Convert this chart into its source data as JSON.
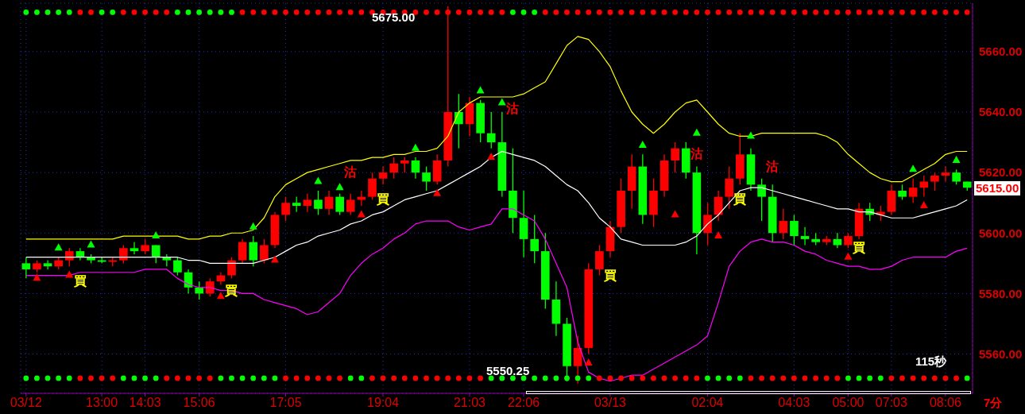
{
  "chart_data": {
    "type": "candlestick",
    "categories": [
      "03/12",
      null,
      null,
      null,
      null,
      null,
      null,
      "13:00",
      null,
      null,
      null,
      "14:03",
      null,
      null,
      null,
      null,
      "15:06",
      null,
      null,
      null,
      null,
      null,
      null,
      null,
      "17:05",
      null,
      null,
      null,
      null,
      null,
      null,
      null,
      null,
      "19:04",
      null,
      null,
      null,
      null,
      null,
      null,
      null,
      "21:03",
      null,
      null,
      null,
      null,
      "22:06",
      null,
      null,
      null,
      null,
      null,
      null,
      null,
      "03/13",
      null,
      null,
      null,
      null,
      null,
      null,
      null,
      null,
      "02:04",
      null,
      null,
      null,
      null,
      null,
      null,
      null,
      "04:03",
      null,
      null,
      null,
      null,
      "05:00",
      null,
      null,
      null,
      "07:03",
      null,
      null,
      null,
      null,
      "08:06",
      null,
      null
    ],
    "ohlc": [
      [
        5590,
        5592,
        5585,
        5588
      ],
      [
        5588,
        5591,
        5587,
        5590
      ],
      [
        5590,
        5591,
        5588,
        5589
      ],
      [
        5589,
        5592,
        5588,
        5591
      ],
      [
        5591,
        5595,
        5589,
        5594
      ],
      [
        5594,
        5595,
        5591,
        5592
      ],
      [
        5592,
        5593,
        5590,
        5591
      ],
      [
        5591,
        5592,
        5590,
        5590.5
      ],
      [
        5590.5,
        5592,
        5589,
        5591
      ],
      [
        5591,
        5596,
        5590,
        5595
      ],
      [
        5595,
        5597,
        5593,
        5594
      ],
      [
        5594,
        5598,
        5593,
        5596
      ],
      [
        5596,
        5596,
        5590,
        5592
      ],
      [
        5592,
        5593,
        5589,
        5591
      ],
      [
        5591,
        5592,
        5586,
        5587
      ],
      [
        5587,
        5588,
        5580,
        5582
      ],
      [
        5582,
        5584,
        5578,
        5580
      ],
      [
        5580,
        5585,
        5579,
        5584
      ],
      [
        5584,
        5587,
        5583,
        5586
      ],
      [
        5586,
        5592,
        5585,
        5591
      ],
      [
        5591,
        5598,
        5590,
        5597
      ],
      [
        5597,
        5599,
        5589,
        5591
      ],
      [
        5591,
        5598,
        5590,
        5596
      ],
      [
        5596,
        5607,
        5595,
        5606
      ],
      [
        5606,
        5612,
        5604,
        5610
      ],
      [
        5610,
        5612,
        5607,
        5609
      ],
      [
        5609,
        5613,
        5607,
        5611
      ],
      [
        5611,
        5614,
        5606,
        5608
      ],
      [
        5608,
        5614,
        5606,
        5612
      ],
      [
        5612,
        5613,
        5606,
        5607
      ],
      [
        5607,
        5613,
        5606,
        5611
      ],
      [
        5611,
        5614,
        5609,
        5612
      ],
      [
        5612,
        5620,
        5611,
        5618
      ],
      [
        5618,
        5622,
        5616,
        5620
      ],
      [
        5620,
        5625,
        5618,
        5623
      ],
      [
        5623,
        5625,
        5620,
        5624
      ],
      [
        5624,
        5625,
        5618,
        5620
      ],
      [
        5620,
        5622,
        5614,
        5617
      ],
      [
        5617,
        5626,
        5616,
        5624
      ],
      [
        5624,
        5675,
        5622,
        5640
      ],
      [
        5640,
        5646,
        5628,
        5636
      ],
      [
        5636,
        5645,
        5632,
        5643
      ],
      [
        5643,
        5644,
        5630,
        5633
      ],
      [
        5633,
        5640,
        5628,
        5630
      ],
      [
        5630,
        5640,
        5612,
        5614
      ],
      [
        5614,
        5628,
        5600,
        5605
      ],
      [
        5605,
        5614,
        5592,
        5598
      ],
      [
        5598,
        5606,
        5590,
        5594
      ],
      [
        5594,
        5600,
        5575,
        5578
      ],
      [
        5578,
        5584,
        5566,
        5570
      ],
      [
        5570,
        5572,
        5551,
        5556
      ],
      [
        5556,
        5566,
        5550.25,
        5562
      ],
      [
        5562,
        5590,
        5560,
        5588
      ],
      [
        5588,
        5596,
        5586,
        5594
      ],
      [
        5594,
        5604,
        5592,
        5602
      ],
      [
        5602,
        5618,
        5600,
        5614
      ],
      [
        5614,
        5626,
        5608,
        5622
      ],
      [
        5622,
        5626,
        5603,
        5606
      ],
      [
        5606,
        5618,
        5602,
        5614
      ],
      [
        5614,
        5626,
        5612,
        5624
      ],
      [
        5624,
        5630,
        5620,
        5628
      ],
      [
        5628,
        5630,
        5618,
        5620
      ],
      [
        5620,
        5622,
        5593,
        5600
      ],
      [
        5600,
        5610,
        5596,
        5606
      ],
      [
        5606,
        5614,
        5604,
        5612
      ],
      [
        5612,
        5622,
        5608,
        5618
      ],
      [
        5618,
        5633,
        5616,
        5626
      ],
      [
        5626,
        5628,
        5614,
        5616
      ],
      [
        5616,
        5618,
        5604,
        5612
      ],
      [
        5612,
        5616,
        5597,
        5600
      ],
      [
        5600,
        5608,
        5598,
        5604
      ],
      [
        5604,
        5606,
        5596,
        5599
      ],
      [
        5599,
        5602,
        5596,
        5598
      ],
      [
        5598,
        5600,
        5596,
        5597
      ],
      [
        5597,
        5599,
        5596,
        5598
      ],
      [
        5598,
        5600,
        5595,
        5596
      ],
      [
        5596,
        5600,
        5595,
        5599
      ],
      [
        5599,
        5610,
        5598,
        5608
      ],
      [
        5608,
        5610,
        5604,
        5606
      ],
      [
        5606,
        5609,
        5604,
        5607
      ],
      [
        5607,
        5616,
        5606,
        5614
      ],
      [
        5614,
        5616,
        5611,
        5612
      ],
      [
        5612,
        5618,
        5610,
        5615
      ],
      [
        5615,
        5619,
        5612,
        5617
      ],
      [
        5617,
        5620,
        5614,
        5619
      ],
      [
        5619,
        5622,
        5617,
        5620
      ],
      [
        5620,
        5621,
        5616,
        5617
      ],
      [
        5617,
        5617,
        5614,
        5615
      ]
    ],
    "colors": [
      "#00ff00",
      "#ff0000",
      "#00ff00",
      "#ff0000",
      "#ff0000",
      "#00ff00",
      "#00ff00",
      "#00ff00",
      "#ff0000",
      "#ff0000",
      "#00ff00",
      "#ff0000",
      "#00ff00",
      "#00ff00",
      "#00ff00",
      "#00ff00",
      "#00ff00",
      "#ff0000",
      "#ff0000",
      "#ff0000",
      "#ff0000",
      "#00ff00",
      "#ff0000",
      "#ff0000",
      "#ff0000",
      "#00ff00",
      "#ff0000",
      "#00ff00",
      "#ff0000",
      "#00ff00",
      "#ff0000",
      "#ff0000",
      "#ff0000",
      "#ff0000",
      "#ff0000",
      "#ff0000",
      "#00ff00",
      "#00ff00",
      "#ff0000",
      "#ff0000",
      "#00ff00",
      "#ff0000",
      "#00ff00",
      "#00ff00",
      "#00ff00",
      "#00ff00",
      "#00ff00",
      "#00ff00",
      "#00ff00",
      "#00ff00",
      "#00ff00",
      "#ff0000",
      "#ff0000",
      "#ff0000",
      "#ff0000",
      "#ff0000",
      "#ff0000",
      "#00ff00",
      "#ff0000",
      "#ff0000",
      "#ff0000",
      "#00ff00",
      "#00ff00",
      "#ff0000",
      "#ff0000",
      "#ff0000",
      "#ff0000",
      "#00ff00",
      "#00ff00",
      "#00ff00",
      "#ff0000",
      "#00ff00",
      "#00ff00",
      "#00ff00",
      "#ff0000",
      "#00ff00",
      "#ff0000",
      "#ff0000",
      "#00ff00",
      "#ff0000",
      "#ff0000",
      "#00ff00",
      "#ff0000",
      "#ff0000",
      "#ff0000",
      "#ff0000",
      "#00ff00",
      "#00ff00"
    ],
    "series": [
      {
        "type": "line",
        "color": "#ffff00",
        "values": [
          5598,
          5598,
          5598,
          5598,
          5598,
          5598,
          5598,
          5598,
          5598,
          5599,
          5599,
          5599,
          5599,
          5599,
          5599,
          5598,
          5598,
          5599,
          5599,
          5600,
          5600,
          5601,
          5605,
          5612,
          5616,
          5618,
          5620,
          5621,
          5622,
          5623,
          5624,
          5624,
          5625,
          5625,
          5626,
          5626,
          5627,
          5627,
          5628,
          5632,
          5640,
          5643,
          5645,
          5645,
          5645,
          5645,
          5646,
          5648,
          5650,
          5656,
          5662,
          5665,
          5664,
          5660,
          5655,
          5647,
          5640,
          5636,
          5633,
          5636,
          5640,
          5643,
          5644,
          5640,
          5636,
          5633,
          5632,
          5632,
          5633,
          5633,
          5633,
          5633,
          5633,
          5633,
          5632,
          5630,
          5626,
          5623,
          5620,
          5618,
          5617,
          5617,
          5619,
          5621,
          5623,
          5626,
          5627,
          5627
        ]
      },
      {
        "type": "line",
        "color": "#ffffff",
        "values": [
          5592,
          5592,
          5592,
          5592,
          5592,
          5592,
          5592,
          5592,
          5592,
          5592,
          5592,
          5592,
          5592,
          5592,
          5592,
          5591,
          5591,
          5590,
          5590,
          5590,
          5590,
          5590,
          5591,
          5592,
          5594,
          5596,
          5597,
          5599,
          5600,
          5601,
          5603,
          5604,
          5606,
          5607,
          5609,
          5611,
          5612,
          5613,
          5614,
          5616,
          5618,
          5620,
          5622,
          5625,
          5627,
          5626,
          5625,
          5624,
          5622,
          5619,
          5616,
          5614,
          5610,
          5605,
          5602,
          5598,
          5597,
          5596,
          5596,
          5596,
          5596,
          5597,
          5599,
          5603,
          5606,
          5610,
          5614,
          5615,
          5615,
          5614,
          5613,
          5612,
          5611,
          5610,
          5609,
          5608,
          5608,
          5607,
          5607,
          5606,
          5605,
          5605,
          5605,
          5606,
          5607,
          5608,
          5609,
          5611
        ]
      },
      {
        "type": "line",
        "color": "#ff00ff",
        "values": [
          5586,
          5586,
          5586,
          5586,
          5586,
          5587,
          5587,
          5587,
          5587,
          5587,
          5587,
          5588,
          5588,
          5588,
          5585,
          5583,
          5582,
          5582,
          5581,
          5581,
          5580,
          5580,
          5578,
          5577,
          5576,
          5575,
          5573,
          5574,
          5577,
          5580,
          5586,
          5590,
          5593,
          5595,
          5598,
          5600,
          5603,
          5604,
          5604,
          5604,
          5602,
          5601,
          5602,
          5603,
          5608,
          5608,
          5606,
          5604,
          5598,
          5590,
          5582,
          5564,
          5554,
          5552,
          5551,
          5552,
          5553,
          5553,
          5555,
          5557,
          5559,
          5561,
          5563,
          5566,
          5577,
          5589,
          5594,
          5597,
          5598,
          5597,
          5597,
          5596,
          5594,
          5593,
          5591,
          5590,
          5589,
          5589,
          5588,
          5588,
          5589,
          5591,
          5592,
          5592,
          5592,
          5592,
          5594,
          5595
        ]
      },
      {
        "type": "scatter",
        "marker": "circle",
        "values": [
          5673,
          5673,
          5673,
          5673,
          5673,
          5673,
          5673,
          5673,
          5673,
          5673,
          5673,
          5673,
          5673,
          5673,
          5673,
          5673,
          5673,
          5673,
          5673,
          5673,
          5673,
          5673,
          5673,
          5673,
          5673,
          5673,
          5673,
          5673,
          5673,
          5673,
          5673,
          5673,
          5673,
          5673,
          5673,
          5673,
          5673,
          5673,
          5673,
          5673,
          5673,
          5673,
          5673,
          5673,
          5673,
          5673,
          5673,
          5673,
          5673,
          5673,
          5673,
          5673,
          5673,
          5673,
          5673,
          5673,
          5673,
          5673,
          5673,
          5673,
          5673,
          5673,
          5673,
          5673,
          5673,
          5673,
          5673,
          5673,
          5673,
          5673,
          5673,
          5673,
          5673,
          5673,
          5673,
          5673,
          5673,
          5673,
          5673,
          5673,
          5673,
          5673,
          5673,
          5673,
          5673,
          5673,
          5673,
          5673
        ],
        "colors": [
          "#00ff00",
          "#00ff00",
          "#00ff00",
          "#00ff00",
          "#00ff00",
          "#ff0000",
          "#ff0000",
          "#00ff00",
          "#00ff00",
          "#ff0000",
          "#ff0000",
          "#ff0000",
          "#ff0000",
          "#ff0000",
          "#00ff00",
          "#00ff00",
          "#00ff00",
          "#00ff00",
          "#00ff00",
          "#00ff00",
          "#ff0000",
          "#ff0000",
          "#ff0000",
          "#ff0000",
          "#ff0000",
          "#ff0000",
          "#ff0000",
          "#ff0000",
          "#ff0000",
          "#ff0000",
          "#ff0000",
          "#ff0000",
          "#ff0000",
          "#ff0000",
          "#ff0000",
          "#ff0000",
          "#ff0000",
          "#ff0000",
          "#ff0000",
          "#ff0000",
          "#ff0000",
          "#ff0000",
          "#ff0000",
          "#ff0000",
          "#ff0000",
          "#00ff00",
          "#00ff00",
          "#00ff00",
          "#ff0000",
          "#ff0000",
          "#ff0000",
          "#ff0000",
          "#ff0000",
          "#ff0000",
          "#ff0000",
          "#ff0000",
          "#ff0000",
          "#ff0000",
          "#ff0000",
          "#ff0000",
          "#ff0000",
          "#ff0000",
          "#ff0000",
          "#ff0000",
          "#ff0000",
          "#ff0000",
          "#ff0000",
          "#ff0000",
          "#ff0000",
          "#ff0000",
          "#ff0000",
          "#ff0000",
          "#ff0000",
          "#ff0000",
          "#ff0000",
          "#ff0000",
          "#ff0000",
          "#ff0000",
          "#ff0000",
          "#ff0000",
          "#ff0000",
          "#ff0000",
          "#ff0000",
          "#ff0000",
          "#ff0000",
          "#ff0000",
          "#ff0000",
          "#ff0000"
        ]
      },
      {
        "type": "scatter",
        "marker": "circle",
        "values": [
          5552,
          5552,
          5552,
          5552,
          5552,
          5552,
          5552,
          5552,
          5552,
          5552,
          5552,
          5552,
          5552,
          5552,
          5552,
          5552,
          5552,
          5552,
          5552,
          5552,
          5552,
          5552,
          5552,
          5552,
          5552,
          5552,
          5552,
          5552,
          5552,
          5552,
          5552,
          5552,
          5552,
          5552,
          5552,
          5552,
          5552,
          5552,
          5552,
          5552,
          5552,
          5552,
          5552,
          5552,
          5552,
          5552,
          5552,
          5552,
          5552,
          5552,
          5552,
          5552,
          5552,
          5552,
          5552,
          5552,
          5552,
          5552,
          5552,
          5552,
          5552,
          5552,
          5552,
          5552,
          5552,
          5552,
          5552,
          5552,
          5552,
          5552,
          5552,
          5552,
          5552,
          5552,
          5552,
          5552,
          5552,
          5552,
          5552,
          5552,
          5552,
          5552,
          5552,
          5552,
          5552,
          5552,
          5552,
          5552
        ],
        "colors": [
          "#00ff00",
          "#00ff00",
          "#00ff00",
          "#00ff00",
          "#00ff00",
          "#ff0000",
          "#ff0000",
          "#ff0000",
          "#ff0000",
          "#00ff00",
          "#00ff00",
          "#00ff00",
          "#00ff00",
          "#ff0000",
          "#ff0000",
          "#ff0000",
          "#ff0000",
          "#ff0000",
          "#00ff00",
          "#00ff00",
          "#00ff00",
          "#00ff00",
          "#00ff00",
          "#00ff00",
          "#ff0000",
          "#ff0000",
          "#ff0000",
          "#ff0000",
          "#ff0000",
          "#ff0000",
          "#00ff00",
          "#00ff00",
          "#ff0000",
          "#ff0000",
          "#ff0000",
          "#ff0000",
          "#ff0000",
          "#ff0000",
          "#ff0000",
          "#ff0000",
          "#ff0000",
          "#ff0000",
          "#ff0000",
          "#00ff00",
          "#00ff00",
          "#00ff00",
          "#00ff00",
          "#00ff00",
          "#00ff00",
          "#00ff00",
          "#00ff00",
          "#00ff00",
          "#00ff00",
          "#ff0000",
          "#ff0000",
          "#ff0000",
          "#ff0000",
          "#ff0000",
          "#ff0000",
          "#ff0000",
          "#ff0000",
          "#ff0000",
          "#ff0000",
          "#00ff00",
          "#00ff00",
          "#00ff00",
          "#00ff00",
          "#ff0000",
          "#ff0000",
          "#ff0000",
          "#ff0000",
          "#ff0000",
          "#ff0000",
          "#ff0000",
          "#ff0000",
          "#ff0000",
          "#00ff00",
          "#00ff00",
          "#00ff00",
          "#00ff00",
          "#ff0000",
          "#ff0000",
          "#ff0000",
          "#ff0000",
          "#ff0000",
          "#ff0000",
          "#ff0000",
          "#00ff00"
        ]
      },
      {
        "type": "scatter",
        "marker": "triangle",
        "color": "#ff0000",
        "values": [
          null,
          5585,
          null,
          null,
          5586,
          null,
          null,
          null,
          null,
          null,
          null,
          null,
          null,
          null,
          null,
          null,
          null,
          null,
          5579,
          null,
          null,
          null,
          null,
          5591,
          null,
          null,
          null,
          null,
          null,
          null,
          null,
          5606,
          null,
          null,
          null,
          null,
          null,
          null,
          5613,
          null,
          null,
          null,
          null,
          5625,
          null,
          null,
          null,
          null,
          null,
          null,
          null,
          null,
          5557,
          null,
          null,
          null,
          null,
          null,
          null,
          null,
          5606,
          null,
          null,
          null,
          5599,
          null,
          null,
          null,
          null,
          null,
          null,
          null,
          null,
          null,
          null,
          null,
          5592,
          null,
          null,
          null,
          null,
          null,
          null,
          5609,
          null,
          null,
          null,
          null
        ]
      },
      {
        "type": "scatter",
        "marker": "triangle",
        "color": "#00ff00",
        "values": [
          null,
          null,
          null,
          5595,
          null,
          null,
          5596,
          null,
          null,
          null,
          null,
          null,
          5599,
          null,
          null,
          null,
          null,
          null,
          null,
          null,
          null,
          5602,
          null,
          null,
          null,
          null,
          null,
          5617,
          null,
          5615,
          null,
          null,
          null,
          null,
          null,
          null,
          5628,
          null,
          null,
          null,
          null,
          null,
          5647,
          null,
          5643,
          null,
          null,
          null,
          null,
          null,
          null,
          null,
          null,
          null,
          null,
          null,
          null,
          5629,
          null,
          null,
          null,
          null,
          5633,
          null,
          null,
          null,
          null,
          5632,
          null,
          null,
          null,
          null,
          null,
          null,
          null,
          null,
          null,
          null,
          null,
          null,
          null,
          null,
          5621,
          null,
          null,
          null,
          5624,
          null
        ]
      }
    ],
    "ylim": [
      5547,
      5676
    ],
    "yticks": [
      {
        "value": 5560,
        "label": "5560.00"
      },
      {
        "value": 5580,
        "label": "5580.00"
      },
      {
        "value": 5600,
        "label": "5600.00"
      },
      {
        "value": 5620,
        "label": "5620.00"
      },
      {
        "value": 5640,
        "label": "5640.00"
      },
      {
        "value": 5660,
        "label": "5660.00"
      }
    ],
    "grid": true,
    "annotations": [
      "5675.00",
      "5550.25",
      "5615.00",
      "115秒",
      "7分",
      "買",
      "買",
      "買",
      "買",
      "買",
      "買",
      "沽",
      "沽",
      "沽",
      "沽"
    ]
  }
}
